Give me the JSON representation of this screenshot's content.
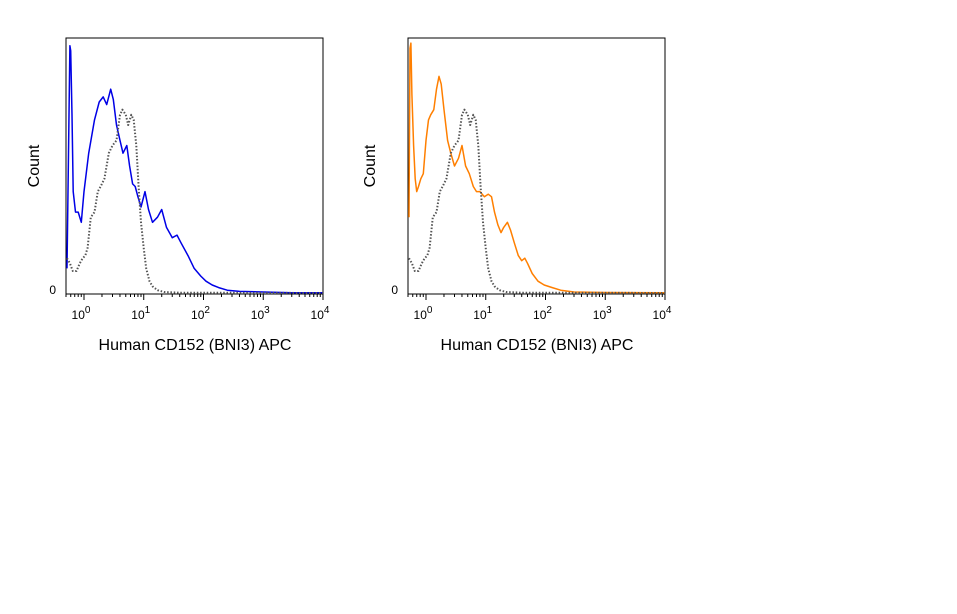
{
  "chart_data": [
    {
      "type": "line",
      "xlabel": "Human CD152 (BNI3) APC",
      "ylabel": "Count",
      "xscale": "log",
      "xlim": [
        0.5,
        10000
      ],
      "ylim": [
        0,
        100
      ],
      "x_ticks": [
        {
          "base": "10",
          "exp": "0",
          "value": 1
        },
        {
          "base": "10",
          "exp": "1",
          "value": 10
        },
        {
          "base": "10",
          "exp": "2",
          "value": 100
        },
        {
          "base": "10",
          "exp": "3",
          "value": 1000
        },
        {
          "base": "10",
          "exp": "4",
          "value": 10000
        }
      ],
      "y_ticks": [
        {
          "label": "0",
          "value": 0
        }
      ],
      "grid": false,
      "series": [
        {
          "color": "#0000e6",
          "style": "solid",
          "points": [
            [
              0.52,
              10
            ],
            [
              0.55,
              55
            ],
            [
              0.58,
              97
            ],
            [
              0.6,
              95
            ],
            [
              0.63,
              70
            ],
            [
              0.66,
              40
            ],
            [
              0.72,
              32
            ],
            [
              0.8,
              32
            ],
            [
              0.9,
              28
            ],
            [
              1.0,
              40
            ],
            [
              1.2,
              55
            ],
            [
              1.5,
              68
            ],
            [
              1.8,
              75
            ],
            [
              2.1,
              77
            ],
            [
              2.4,
              74
            ],
            [
              2.8,
              80
            ],
            [
              3.1,
              76
            ],
            [
              3.5,
              66
            ],
            [
              4.0,
              60
            ],
            [
              4.5,
              55
            ],
            [
              5.2,
              58
            ],
            [
              5.8,
              50
            ],
            [
              6.5,
              43
            ],
            [
              7.2,
              42
            ],
            [
              8.0,
              38
            ],
            [
              9.0,
              34
            ],
            [
              10.5,
              40
            ],
            [
              12,
              33
            ],
            [
              14,
              28
            ],
            [
              17,
              30
            ],
            [
              20,
              33
            ],
            [
              24,
              26
            ],
            [
              30,
              22
            ],
            [
              36,
              23
            ],
            [
              42,
              20
            ],
            [
              55,
              15
            ],
            [
              70,
              10
            ],
            [
              90,
              7
            ],
            [
              110,
              5
            ],
            [
              140,
              3.5
            ],
            [
              180,
              2.5
            ],
            [
              250,
              1.5
            ],
            [
              400,
              1
            ],
            [
              1000,
              0.8
            ],
            [
              3000,
              0.5
            ],
            [
              10000,
              0.5
            ]
          ]
        },
        {
          "color": "#555555",
          "style": "dotted",
          "points": [
            [
              0.52,
              14
            ],
            [
              0.58,
              12
            ],
            [
              0.65,
              9
            ],
            [
              0.75,
              9
            ],
            [
              0.85,
              12
            ],
            [
              0.95,
              14
            ],
            [
              1.05,
              15
            ],
            [
              1.15,
              18
            ],
            [
              1.3,
              30
            ],
            [
              1.5,
              32
            ],
            [
              1.7,
              40
            ],
            [
              1.9,
              42
            ],
            [
              2.2,
              45
            ],
            [
              2.6,
              55
            ],
            [
              3.0,
              58
            ],
            [
              3.5,
              60
            ],
            [
              4.0,
              70
            ],
            [
              4.4,
              72
            ],
            [
              5.0,
              70
            ],
            [
              5.5,
              66
            ],
            [
              6.2,
              70
            ],
            [
              6.8,
              68
            ],
            [
              7.5,
              58
            ],
            [
              8.2,
              42
            ],
            [
              9.0,
              28
            ],
            [
              10,
              18
            ],
            [
              11,
              10
            ],
            [
              12.5,
              5
            ],
            [
              14,
              3
            ],
            [
              17,
              1.5
            ],
            [
              22,
              0.8
            ],
            [
              40,
              0.5
            ],
            [
              10000,
              0.4
            ]
          ]
        }
      ]
    },
    {
      "type": "line",
      "xlabel": "Human CD152 (BNI3) APC",
      "ylabel": "Count",
      "xscale": "log",
      "xlim": [
        0.5,
        10000
      ],
      "ylim": [
        0,
        100
      ],
      "x_ticks": [
        {
          "base": "10",
          "exp": "0",
          "value": 1
        },
        {
          "base": "10",
          "exp": "1",
          "value": 10
        },
        {
          "base": "10",
          "exp": "2",
          "value": 100
        },
        {
          "base": "10",
          "exp": "3",
          "value": 1000
        },
        {
          "base": "10",
          "exp": "4",
          "value": 10000
        }
      ],
      "y_ticks": [
        {
          "label": "0",
          "value": 0
        }
      ],
      "grid": false,
      "series": [
        {
          "color": "#ff7f00",
          "style": "solid",
          "points": [
            [
              0.52,
              30
            ],
            [
              0.54,
              96
            ],
            [
              0.56,
              98
            ],
            [
              0.58,
              78
            ],
            [
              0.62,
              58
            ],
            [
              0.66,
              45
            ],
            [
              0.7,
              40
            ],
            [
              0.75,
              42
            ],
            [
              0.82,
              45
            ],
            [
              0.9,
              47
            ],
            [
              1.0,
              60
            ],
            [
              1.1,
              68
            ],
            [
              1.2,
              70
            ],
            [
              1.35,
              72
            ],
            [
              1.5,
              80
            ],
            [
              1.65,
              85
            ],
            [
              1.8,
              82
            ],
            [
              2.0,
              72
            ],
            [
              2.3,
              60
            ],
            [
              2.6,
              55
            ],
            [
              3.0,
              50
            ],
            [
              3.5,
              53
            ],
            [
              4.0,
              58
            ],
            [
              4.6,
              50
            ],
            [
              5.3,
              47
            ],
            [
              6.2,
              42
            ],
            [
              7.0,
              40
            ],
            [
              8.0,
              40
            ],
            [
              9.5,
              38
            ],
            [
              11,
              39
            ],
            [
              12.5,
              38
            ],
            [
              14,
              32
            ],
            [
              16,
              27
            ],
            [
              18,
              24
            ],
            [
              20,
              26
            ],
            [
              23,
              28
            ],
            [
              26,
              25
            ],
            [
              30,
              20
            ],
            [
              35,
              15
            ],
            [
              40,
              13
            ],
            [
              45,
              14
            ],
            [
              50,
              12
            ],
            [
              60,
              8
            ],
            [
              75,
              5
            ],
            [
              95,
              3.5
            ],
            [
              130,
              2.5
            ],
            [
              180,
              1.5
            ],
            [
              300,
              0.8
            ],
            [
              1000,
              0.6
            ],
            [
              10000,
              0.5
            ]
          ]
        },
        {
          "color": "#555555",
          "style": "dotted",
          "points": [
            [
              0.52,
              14
            ],
            [
              0.58,
              12
            ],
            [
              0.65,
              9
            ],
            [
              0.75,
              9
            ],
            [
              0.85,
              12
            ],
            [
              0.95,
              14
            ],
            [
              1.05,
              15
            ],
            [
              1.15,
              18
            ],
            [
              1.3,
              30
            ],
            [
              1.5,
              32
            ],
            [
              1.7,
              40
            ],
            [
              1.9,
              42
            ],
            [
              2.2,
              45
            ],
            [
              2.6,
              55
            ],
            [
              3.0,
              58
            ],
            [
              3.5,
              60
            ],
            [
              4.0,
              70
            ],
            [
              4.4,
              72
            ],
            [
              5.0,
              70
            ],
            [
              5.5,
              66
            ],
            [
              6.2,
              70
            ],
            [
              6.8,
              68
            ],
            [
              7.5,
              58
            ],
            [
              8.2,
              42
            ],
            [
              9.0,
              28
            ],
            [
              10,
              18
            ],
            [
              11,
              10
            ],
            [
              12.5,
              5
            ],
            [
              14,
              3
            ],
            [
              17,
              1.5
            ],
            [
              22,
              0.8
            ],
            [
              40,
              0.5
            ],
            [
              10000,
              0.4
            ]
          ]
        }
      ]
    }
  ]
}
